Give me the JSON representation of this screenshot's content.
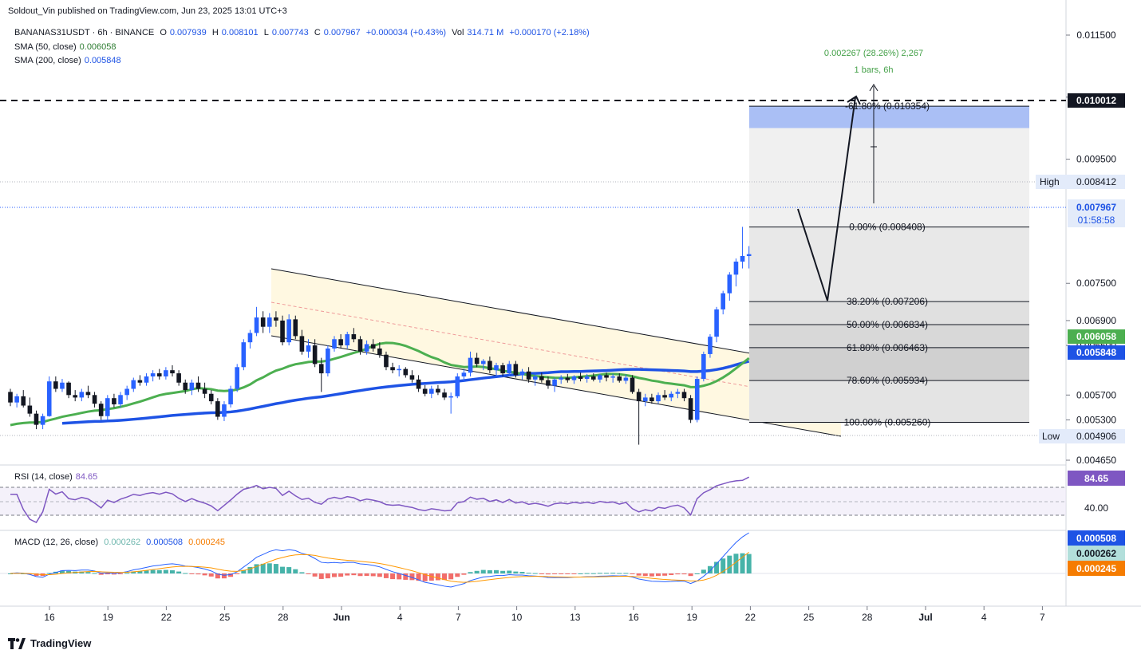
{
  "publisher": "Soldout_Vin published on TradingView.com, Jun 23, 2025 13:01 UTC+3",
  "brand": "TradingView",
  "header": {
    "symbol": "BANANAS31USDT · 6h · BINANCE",
    "open_label": "O",
    "open": "0.007939",
    "high_label": "H",
    "high": "0.008101",
    "low_label": "L",
    "low": "0.007743",
    "close_label": "C",
    "close": "0.007967",
    "change": "+0.000034 (+0.43%)",
    "vol_label": "Vol",
    "vol": "314.71 M",
    "vol_change": "+0.000170 (+2.18%)"
  },
  "indicators": {
    "sma50_label": "SMA (50, close)",
    "sma50_value": "0.006058",
    "sma200_label": "SMA (200, close)",
    "sma200_value": "0.005848",
    "rsi_label": "RSI (14, close)",
    "rsi_value": "84.65",
    "macd_label": "MACD (12, 26, close)",
    "macd_hist": "0.000262",
    "macd_line": "0.000508",
    "macd_signal": "0.000245"
  },
  "colors": {
    "up": "#089981",
    "up_recent": "#2962ff",
    "down": "#131722",
    "sma50": "#4caf50",
    "sma200": "#1e53e5",
    "rsi": "#7e57c2",
    "macd_line": "#2962ff",
    "macd_signal": "#ff9800",
    "hist_up": "#26a69a",
    "hist_down": "#ef5350",
    "channel_fill": "#fff8e1",
    "target_fill": "#aabff5"
  },
  "price_axis": {
    "ticks": [
      "0.011500",
      "0.010500",
      "0.009500",
      "0.007500",
      "0.006900",
      "0.006500",
      "0.005700",
      "0.005300",
      "0.004650"
    ],
    "marker_target": "0.010012",
    "marker_high_label": "High",
    "marker_high": "0.008412",
    "marker_last": "0.007967",
    "marker_timer": "01:58:58",
    "marker_sma50": "0.006058",
    "marker_sma200": "0.005848",
    "marker_low_label": "Low",
    "marker_low": "0.004906"
  },
  "rsi_axis": {
    "value_tag": "84.65",
    "tick": "40.00"
  },
  "macd_axis": {
    "tag_line": "0.000508",
    "tag_hist": "0.000262",
    "tag_signal": "0.000245"
  },
  "time_axis": [
    "16",
    "19",
    "22",
    "25",
    "28",
    "Jun",
    "4",
    "7",
    "10",
    "13",
    "16",
    "19",
    "22",
    "25",
    "28",
    "Jul",
    "4",
    "7"
  ],
  "fib_levels": [
    {
      "label": "-61.80% (0.010354)",
      "price": 0.010354
    },
    {
      "label": "0.00% (0.008408)",
      "price": 0.008408
    },
    {
      "label": "38.20% (0.007206)",
      "price": 0.007206
    },
    {
      "label": "50.00% (0.006834)",
      "price": 0.006834
    },
    {
      "label": "61.80% (0.006463)",
      "price": 0.006463
    },
    {
      "label": "78.60% (0.005934)",
      "price": 0.005934
    },
    {
      "label": "100.00% (0.005260)",
      "price": 0.00526
    }
  ],
  "measure": {
    "line1": "0.002267 (28.26%) 2,267",
    "line2": "1 bars, 6h"
  },
  "chart_data": {
    "type": "candlestick",
    "title": "BANANAS31USDT · 6h · BINANCE",
    "x_ticks": [
      "16",
      "19",
      "22",
      "25",
      "28",
      "Jun",
      "4",
      "7",
      "10",
      "13",
      "16",
      "19",
      "22",
      "25",
      "28",
      "Jul",
      "4",
      "7"
    ],
    "ylim": [
      0.0043,
      0.0117
    ],
    "last_close": 0.007967,
    "high": 0.008412,
    "low": 0.004906,
    "target": 0.010012,
    "sma50_last": 0.006058,
    "sma200_last": 0.005848,
    "rsi_last": 84.65,
    "candles": [
      [
        0.00575,
        0.0058,
        0.00552,
        0.00558
      ],
      [
        0.00558,
        0.00572,
        0.0055,
        0.00568
      ],
      [
        0.00568,
        0.00578,
        0.0055,
        0.00553
      ],
      [
        0.00553,
        0.00566,
        0.00535,
        0.0054
      ],
      [
        0.0054,
        0.00545,
        0.00515,
        0.00522
      ],
      [
        0.00522,
        0.0054,
        0.00515,
        0.00536
      ],
      [
        0.00536,
        0.006,
        0.00535,
        0.00592
      ],
      [
        0.00592,
        0.006,
        0.00575,
        0.0058
      ],
      [
        0.0058,
        0.00596,
        0.00575,
        0.0059
      ],
      [
        0.0059,
        0.00592,
        0.00565,
        0.0057
      ],
      [
        0.0057,
        0.00578,
        0.0056,
        0.00566
      ],
      [
        0.00566,
        0.0058,
        0.0056,
        0.00575
      ],
      [
        0.00575,
        0.00585,
        0.00565,
        0.0057
      ],
      [
        0.0057,
        0.00575,
        0.0055,
        0.00556
      ],
      [
        0.00556,
        0.0056,
        0.0053,
        0.00536
      ],
      [
        0.00536,
        0.0057,
        0.0053,
        0.00565
      ],
      [
        0.00565,
        0.00572,
        0.0055,
        0.00555
      ],
      [
        0.00555,
        0.00575,
        0.0055,
        0.0057
      ],
      [
        0.0057,
        0.00585,
        0.00562,
        0.0058
      ],
      [
        0.0058,
        0.00598,
        0.00575,
        0.00594
      ],
      [
        0.00594,
        0.00602,
        0.00585,
        0.0059
      ],
      [
        0.0059,
        0.00605,
        0.00585,
        0.006
      ],
      [
        0.006,
        0.0061,
        0.00592,
        0.00605
      ],
      [
        0.00605,
        0.00612,
        0.00595,
        0.006
      ],
      [
        0.006,
        0.00615,
        0.00595,
        0.0061
      ],
      [
        0.0061,
        0.00618,
        0.006,
        0.00605
      ],
      [
        0.00605,
        0.0061,
        0.00585,
        0.0059
      ],
      [
        0.0059,
        0.00595,
        0.00572,
        0.00578
      ],
      [
        0.00578,
        0.00595,
        0.0057,
        0.0059
      ],
      [
        0.0059,
        0.006,
        0.00575,
        0.0058
      ],
      [
        0.0058,
        0.0059,
        0.00565,
        0.00572
      ],
      [
        0.00572,
        0.00578,
        0.00555,
        0.0056
      ],
      [
        0.0056,
        0.00565,
        0.0053,
        0.00535
      ],
      [
        0.00535,
        0.0056,
        0.00528,
        0.00555
      ],
      [
        0.00555,
        0.00585,
        0.0055,
        0.0058
      ],
      [
        0.0058,
        0.0062,
        0.00575,
        0.00615
      ],
      [
        0.00615,
        0.0066,
        0.0061,
        0.00655
      ],
      [
        0.00655,
        0.00675,
        0.00645,
        0.0067
      ],
      [
        0.0067,
        0.00712,
        0.00665,
        0.00695
      ],
      [
        0.00695,
        0.00705,
        0.0067,
        0.0068
      ],
      [
        0.0068,
        0.00702,
        0.0067,
        0.00695
      ],
      [
        0.00695,
        0.00705,
        0.0068,
        0.0069
      ],
      [
        0.0069,
        0.00698,
        0.0065,
        0.00655
      ],
      [
        0.00655,
        0.007,
        0.0065,
        0.00692
      ],
      [
        0.00692,
        0.00698,
        0.0066,
        0.00665
      ],
      [
        0.00665,
        0.00675,
        0.00635,
        0.0064
      ],
      [
        0.0064,
        0.0066,
        0.0063,
        0.0065
      ],
      [
        0.0065,
        0.0066,
        0.00615,
        0.0062
      ],
      [
        0.0062,
        0.0063,
        0.00575,
        0.00605
      ],
      [
        0.00605,
        0.0065,
        0.006,
        0.00645
      ],
      [
        0.00645,
        0.00665,
        0.0064,
        0.0066
      ],
      [
        0.0066,
        0.00668,
        0.00645,
        0.0065
      ],
      [
        0.0065,
        0.00672,
        0.00645,
        0.00668
      ],
      [
        0.00668,
        0.00678,
        0.00655,
        0.0066
      ],
      [
        0.0066,
        0.00665,
        0.00635,
        0.0064
      ],
      [
        0.0064,
        0.00658,
        0.00635,
        0.00652
      ],
      [
        0.00652,
        0.0066,
        0.0064,
        0.00645
      ],
      [
        0.00645,
        0.00655,
        0.0063,
        0.00635
      ],
      [
        0.00635,
        0.0064,
        0.0061,
        0.00615
      ],
      [
        0.00615,
        0.00622,
        0.00605,
        0.0061
      ],
      [
        0.0061,
        0.00618,
        0.006,
        0.00612
      ],
      [
        0.00612,
        0.00615,
        0.00598,
        0.00602
      ],
      [
        0.00602,
        0.0061,
        0.0059,
        0.00595
      ],
      [
        0.00595,
        0.00602,
        0.00575,
        0.0058
      ],
      [
        0.0058,
        0.00586,
        0.00568,
        0.00572
      ],
      [
        0.00572,
        0.00585,
        0.00565,
        0.0058
      ],
      [
        0.0058,
        0.00586,
        0.0057,
        0.00574
      ],
      [
        0.00574,
        0.0058,
        0.00562,
        0.00566
      ],
      [
        0.00566,
        0.00574,
        0.0054,
        0.00568
      ],
      [
        0.00568,
        0.00605,
        0.00565,
        0.006
      ],
      [
        0.006,
        0.00612,
        0.00592,
        0.00606
      ],
      [
        0.00606,
        0.0064,
        0.006,
        0.0063
      ],
      [
        0.0063,
        0.00638,
        0.00615,
        0.0062
      ],
      [
        0.0062,
        0.00628,
        0.0061,
        0.00625
      ],
      [
        0.00625,
        0.00632,
        0.00605,
        0.0061
      ],
      [
        0.0061,
        0.00622,
        0.006,
        0.00618
      ],
      [
        0.00618,
        0.00622,
        0.006,
        0.00605
      ],
      [
        0.00605,
        0.00625,
        0.006,
        0.0062
      ],
      [
        0.0062,
        0.00625,
        0.00598,
        0.00602
      ],
      [
        0.00602,
        0.00612,
        0.00595,
        0.00608
      ],
      [
        0.00608,
        0.00615,
        0.0059,
        0.00595
      ],
      [
        0.00595,
        0.00605,
        0.00585,
        0.006
      ],
      [
        0.006,
        0.00606,
        0.0059,
        0.00594
      ],
      [
        0.00594,
        0.006,
        0.0058,
        0.00585
      ],
      [
        0.00585,
        0.00598,
        0.00575,
        0.00595
      ],
      [
        0.00595,
        0.00602,
        0.00588,
        0.00598
      ],
      [
        0.00598,
        0.00604,
        0.0059,
        0.00594
      ],
      [
        0.00594,
        0.00602,
        0.00588,
        0.006
      ],
      [
        0.006,
        0.00606,
        0.00592,
        0.00596
      ],
      [
        0.00596,
        0.00604,
        0.0059,
        0.006
      ],
      [
        0.006,
        0.00605,
        0.00592,
        0.00595
      ],
      [
        0.00595,
        0.00604,
        0.0059,
        0.00602
      ],
      [
        0.00602,
        0.00606,
        0.00592,
        0.00598
      ],
      [
        0.00598,
        0.00604,
        0.0059,
        0.006
      ],
      [
        0.006,
        0.00605,
        0.0059,
        0.00593
      ],
      [
        0.00593,
        0.00603,
        0.00588,
        0.00598
      ],
      [
        0.00598,
        0.00602,
        0.00572,
        0.00575
      ],
      [
        0.00575,
        0.0058,
        0.0049,
        0.0056
      ],
      [
        0.0056,
        0.00572,
        0.00552,
        0.00566
      ],
      [
        0.00566,
        0.00572,
        0.00556,
        0.0056
      ],
      [
        0.0056,
        0.00574,
        0.00556,
        0.0057
      ],
      [
        0.0057,
        0.00578,
        0.00562,
        0.00566
      ],
      [
        0.00566,
        0.00576,
        0.0056,
        0.00572
      ],
      [
        0.00572,
        0.0058,
        0.00565,
        0.00575
      ],
      [
        0.00575,
        0.0058,
        0.0056,
        0.00565
      ],
      [
        0.00565,
        0.0057,
        0.00525,
        0.0053
      ],
      [
        0.0053,
        0.006,
        0.00526,
        0.00596
      ],
      [
        0.00596,
        0.0064,
        0.00592,
        0.00636
      ],
      [
        0.00636,
        0.00668,
        0.0063,
        0.00664
      ],
      [
        0.00664,
        0.00712,
        0.00655,
        0.00708
      ],
      [
        0.00708,
        0.00738,
        0.007,
        0.00734
      ],
      [
        0.00734,
        0.00768,
        0.00722,
        0.00764
      ],
      [
        0.00764,
        0.0079,
        0.00745,
        0.00785
      ],
      [
        0.00785,
        0.00841,
        0.00774,
        0.00794
      ],
      [
        0.00794,
        0.0081,
        0.00774,
        0.00797
      ]
    ]
  }
}
